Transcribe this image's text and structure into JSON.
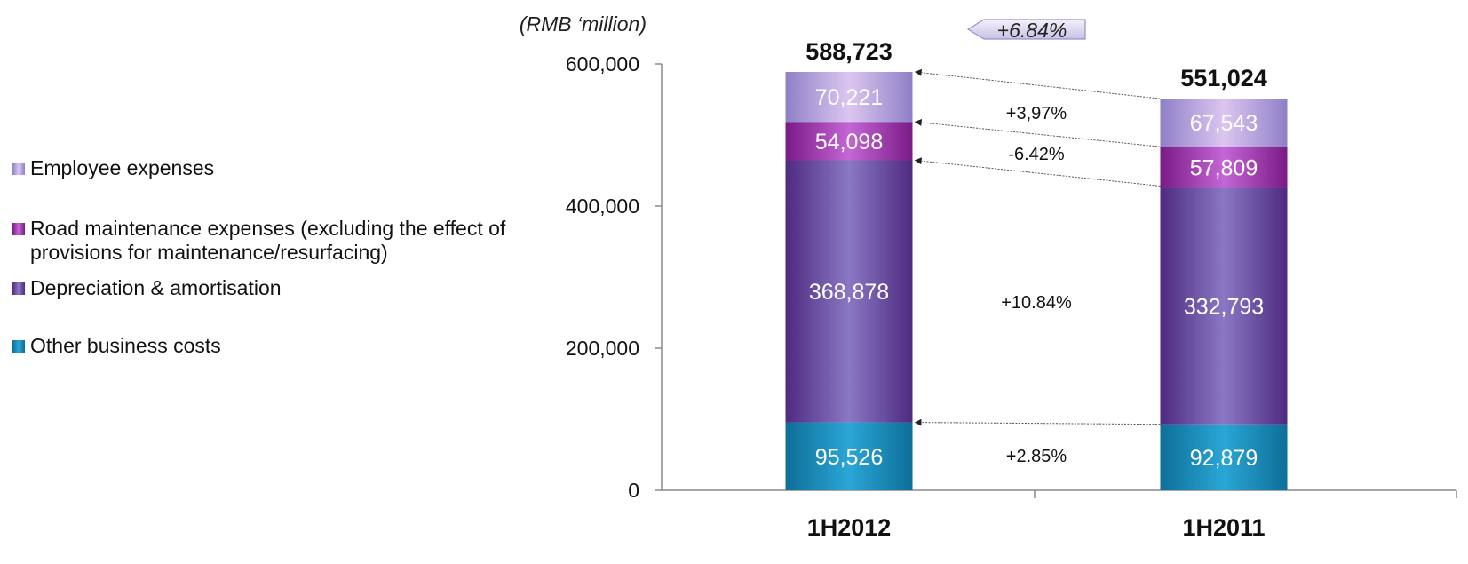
{
  "chart_data": {
    "type": "bar",
    "stacked": true,
    "unit_label": "(RMB ‘million)",
    "categories": [
      "1H2012",
      "1H2011"
    ],
    "totals": [
      588723,
      551024
    ],
    "total_labels": [
      "588,723",
      "551,024"
    ],
    "ylim": [
      0,
      600000
    ],
    "yticks": [
      {
        "value": 0,
        "label": "0"
      },
      {
        "value": 200000,
        "label": "200,000"
      },
      {
        "value": 400000,
        "label": "400,000"
      },
      {
        "value": 600000,
        "label": "600,000"
      }
    ],
    "series": [
      {
        "name": "Other business costs",
        "values": [
          95526,
          92879
        ],
        "labels": [
          "95,526",
          "92,879"
        ],
        "color": "#1A8FC0",
        "change": "+2.85%"
      },
      {
        "name": "Depreciation & amortisation",
        "values": [
          368878,
          332793
        ],
        "labels": [
          "368,878",
          "332,793"
        ],
        "color": "#6A3A9E",
        "change": "+10.84%"
      },
      {
        "name": "Road maintenance expenses (excluding the effect of provisions for maintenance/resurfacing)",
        "values": [
          54098,
          57809
        ],
        "labels": [
          "54,098",
          "57,809"
        ],
        "color": "#9A2FA8",
        "change": "-6.42%"
      },
      {
        "name": "Employee expenses",
        "values": [
          70221,
          67543
        ],
        "labels": [
          "70,221",
          "67,543"
        ],
        "color": "#A294D6",
        "change": "+3,97%"
      }
    ],
    "total_change": "+6.84%",
    "legend_position": "left",
    "grid": false
  }
}
